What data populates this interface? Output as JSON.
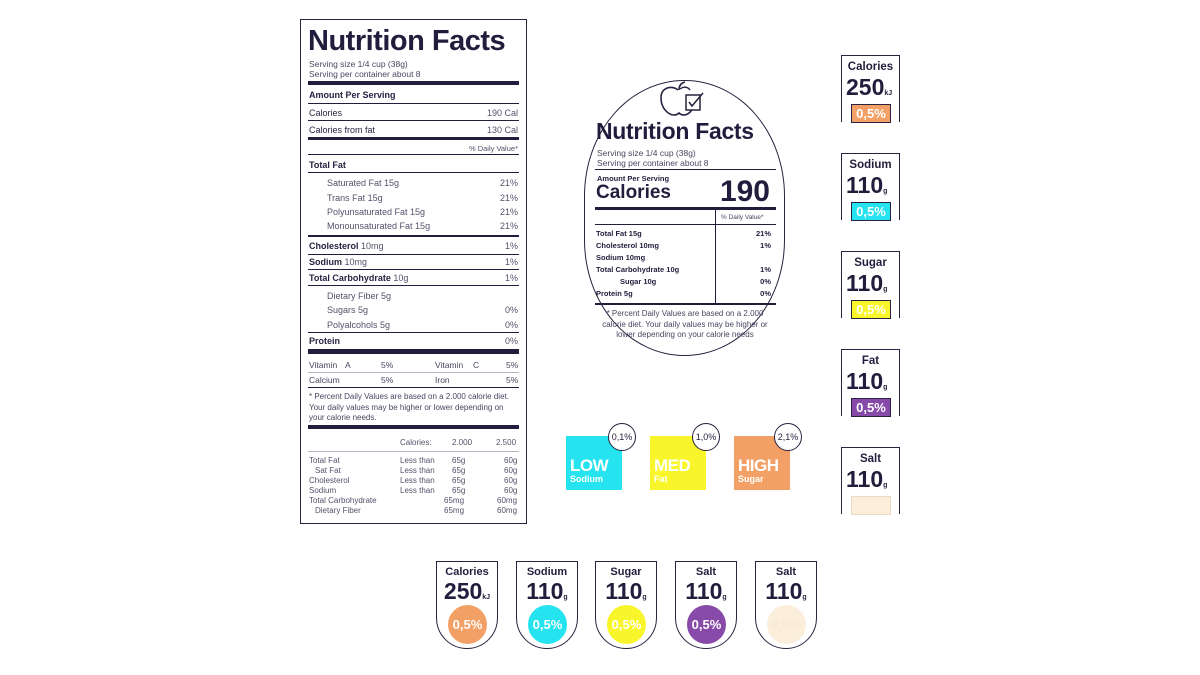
{
  "colors": {
    "ink": "#241c3c",
    "orange": "#f2a066",
    "cyan": "#25e3ef",
    "yellow": "#f8f62a",
    "purple": "#874aa8",
    "cream": "#fbefdc"
  },
  "big_label": {
    "title": "Nutrition Facts",
    "serving_size": "Serving size 1/4 cup (38g)",
    "servings_per_container": "Serving per container about 8",
    "amount_per_serving": "Amount Per Serving",
    "calories": {
      "label": "Calories",
      "value": "190 Cal"
    },
    "calories_from_fat": {
      "label": "Calories from fat",
      "value": "130 Cal"
    },
    "daily_value_header": "% Daily Value*",
    "total_fat": {
      "label": "Total Fat"
    },
    "fat_items": [
      {
        "label": "Saturated Fat 15g",
        "value": "21%"
      },
      {
        "label": "Trans Fat 15g",
        "value": "21%"
      },
      {
        "label": "Polyunsaturated Fat 15g",
        "value": "21%"
      },
      {
        "label": "Monounsaturated Fat 15g",
        "value": "21%"
      }
    ],
    "cholesterol": {
      "label": "Cholesterol",
      "amount": "10mg",
      "value": "1%"
    },
    "sodium": {
      "label": "Sodium",
      "amount": "10mg",
      "value": "1%"
    },
    "total_carb": {
      "label": "Total Carbohydrate",
      "amount": "10g",
      "value": "1%"
    },
    "carb_items": [
      {
        "label": "Dietary Fiber 5g",
        "value": ""
      },
      {
        "label": "Sugars 5g",
        "value": "0%"
      },
      {
        "label": "Polyalcohols 5g",
        "value": "0%"
      }
    ],
    "protein": {
      "label": "Protein",
      "value": "0%"
    },
    "vitamins": [
      {
        "label": "Vitamin",
        "letter": "A",
        "value": "5%"
      },
      {
        "label": "Vitamin",
        "letter": "C",
        "value": "5%"
      },
      {
        "label": "Calcium",
        "letter": "",
        "value": "5%"
      },
      {
        "label": "Iron",
        "letter": "",
        "value": "5%"
      }
    ],
    "footnote": "* Percent Daily Values are based on a 2.000 calorie diet. Your daily values may be higher or lower depending on your calorie needs.",
    "table_header": {
      "label": "Calories:",
      "col1": "2.000",
      "col2": "2.500"
    },
    "table_rows": [
      {
        "name": "Total Fat",
        "cond": "Less than",
        "v1": "65g",
        "v2": "60g"
      },
      {
        "name": "Sat Fat",
        "cond": "Less than",
        "v1": "65g",
        "v2": "60g"
      },
      {
        "name": "Cholesterol",
        "cond": "Less than",
        "v1": "65g",
        "v2": "60g"
      },
      {
        "name": "Sodium",
        "cond": "Less than",
        "v1": "65g",
        "v2": "60g"
      },
      {
        "name": "Total Carbohydrate",
        "cond": "",
        "v1": "65mg",
        "v2": "60mg"
      },
      {
        "name": "Dietary Fiber",
        "cond": "",
        "v1": "65mg",
        "v2": "60mg"
      }
    ]
  },
  "oval_label": {
    "icon": "apple-checklist-icon",
    "title": "Nutrition Facts",
    "serving_size": "Serving size 1/4 cup (38g)",
    "servings_per_container": "Serving per container about 8",
    "amount_per_serving": "Amount Per Serving",
    "calories_label": "Calories",
    "calories_value": "190",
    "daily_value_header": "% Daily Value*",
    "rows": [
      {
        "label": "Total Fat 15g",
        "value": "21%"
      },
      {
        "label": "Cholesterol 10mg",
        "value": "1%"
      },
      {
        "label": "Sodium 10mg",
        "value": ""
      },
      {
        "label": "Total Carbohydrate 10g",
        "value": "1%"
      },
      {
        "label": "Sugar 10g",
        "value": "0%"
      },
      {
        "label": "Protein 5g",
        "value": "0%"
      }
    ],
    "footnote": "* Percent Daily Values are based on a 2.000 calorie diet. Your daily values may be higher or lower depending on your calorie needs"
  },
  "level_badges": [
    {
      "level": "LOW",
      "nutrient": "Sodium",
      "pct": "0,1%",
      "color": "#25e3ef"
    },
    {
      "level": "MED",
      "nutrient": "Fat",
      "pct": "1,0%",
      "color": "#f8f62a"
    },
    {
      "level": "HIGH",
      "nutrient": "Sugar",
      "pct": "2,1%",
      "color": "#f2a066"
    }
  ],
  "right_badges": [
    {
      "name": "Calories",
      "value": "250",
      "unit": "kJ",
      "pct": "0,5%",
      "color": "#f2a066"
    },
    {
      "name": "Sodium",
      "value": "110",
      "unit": "g",
      "pct": "0,5%",
      "color": "#25e3ef"
    },
    {
      "name": "Sugar",
      "value": "110",
      "unit": "g",
      "pct": "0,5%",
      "color": "#f8f62a"
    },
    {
      "name": "Fat",
      "value": "110",
      "unit": "g",
      "pct": "0,5%",
      "color": "#874aa8"
    },
    {
      "name": "Salt",
      "value": "110",
      "unit": "g",
      "pct": "0,5%",
      "color": "#fbefdc"
    }
  ],
  "bottom_badges": [
    {
      "name": "Calories",
      "value": "250",
      "unit": "kJ",
      "pct": "0,5%",
      "color": "#f2a066"
    },
    {
      "name": "Sodium",
      "value": "110",
      "unit": "g",
      "pct": "0,5%",
      "color": "#25e3ef"
    },
    {
      "name": "Sugar",
      "value": "110",
      "unit": "g",
      "pct": "0,5%",
      "color": "#f8f62a"
    },
    {
      "name": "Salt",
      "value": "110",
      "unit": "g",
      "pct": "0,5%",
      "color": "#874aa8"
    },
    {
      "name": "Salt",
      "value": "110",
      "unit": "g",
      "pct": "0,5%",
      "color": "#fbefdc"
    }
  ]
}
